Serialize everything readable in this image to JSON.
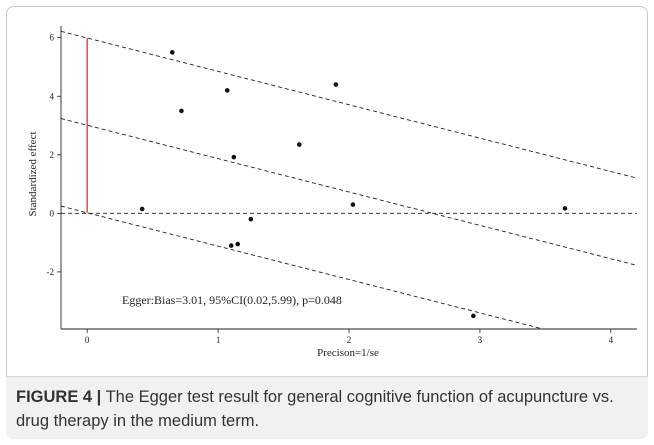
{
  "chart_data": {
    "type": "scatter",
    "xlabel": "Precison=1/se",
    "ylabel": "Standardized effect",
    "xlim": [
      -0.2,
      4.2
    ],
    "ylim": [
      -3.95,
      6.4
    ],
    "xticks": [
      0,
      1,
      2,
      3,
      4
    ],
    "yticks": [
      -2,
      0,
      2,
      4,
      6
    ],
    "grid": false,
    "points": [
      {
        "x": 0.42,
        "y": 0.15
      },
      {
        "x": 0.65,
        "y": 5.5
      },
      {
        "x": 0.72,
        "y": 3.5
      },
      {
        "x": 1.07,
        "y": 4.2
      },
      {
        "x": 1.1,
        "y": -1.1
      },
      {
        "x": 1.12,
        "y": 1.92
      },
      {
        "x": 1.15,
        "y": -1.05
      },
      {
        "x": 1.25,
        "y": -0.2
      },
      {
        "x": 1.62,
        "y": 2.35
      },
      {
        "x": 1.9,
        "y": 4.4
      },
      {
        "x": 2.03,
        "y": 0.3
      },
      {
        "x": 2.95,
        "y": -3.5
      },
      {
        "x": 3.65,
        "y": 0.17
      }
    ],
    "regression_line": {
      "intercept": 3.01,
      "slope": -1.14,
      "style": "dashed"
    },
    "ci_lines": [
      {
        "intercept": 5.99,
        "slope": -1.14,
        "style": "dashed"
      },
      {
        "intercept": 0.02,
        "slope": -1.14,
        "style": "dashed"
      }
    ],
    "reference_line": {
      "y": 0,
      "style": "dashed"
    },
    "ci_segment": {
      "x": 0,
      "y_from": 0.02,
      "y_to": 5.99,
      "color": "#e8332a"
    },
    "annotation": "Egger:Bias=3.01, 95%CI(0.02,5.99), p=0.048"
  },
  "caption": {
    "label": "FIGURE 4 |",
    "text": " The Egger test result for general cognitive function of acupuncture vs. drug therapy in the medium term."
  }
}
